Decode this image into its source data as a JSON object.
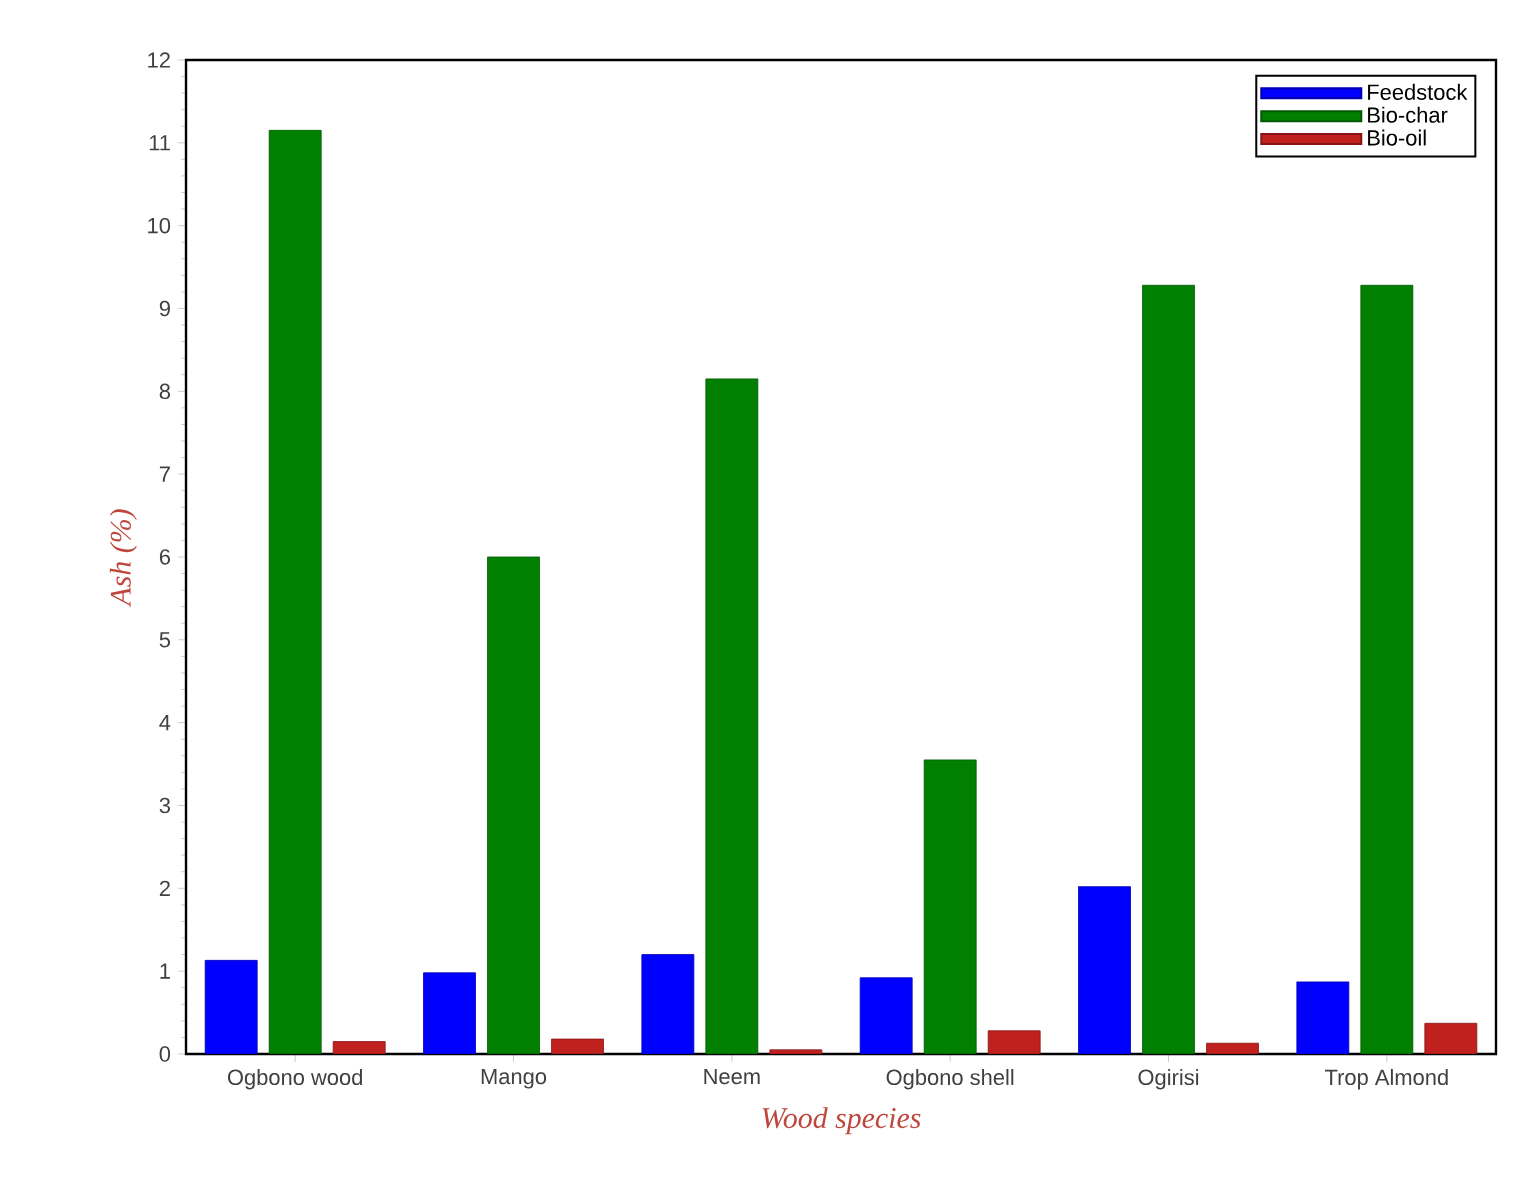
{
  "chart_data": {
    "type": "bar",
    "xlabel": "Wood species",
    "ylabel": "Ash (%)",
    "categories": [
      "Ogbono wood",
      "Mango",
      "Neem",
      "Ogbono shell",
      "Ogirisi",
      "Trop Almond"
    ],
    "series": [
      {
        "name": "Feedstock",
        "color": "#0000ff",
        "values": [
          1.13,
          0.98,
          1.2,
          0.92,
          2.02,
          0.87
        ]
      },
      {
        "name": "Bio-char",
        "color": "#007f00",
        "values": [
          11.15,
          6.0,
          8.15,
          3.55,
          9.28,
          9.28
        ]
      },
      {
        "name": "Bio-oil",
        "color": "#c0201e",
        "values": [
          0.15,
          0.18,
          0.05,
          0.28,
          0.13,
          0.37
        ]
      }
    ],
    "ylim": [
      0,
      12
    ],
    "yticks": [
      0,
      1,
      2,
      3,
      4,
      5,
      6,
      7,
      8,
      9,
      10,
      11,
      12
    ],
    "legend": "top right"
  }
}
